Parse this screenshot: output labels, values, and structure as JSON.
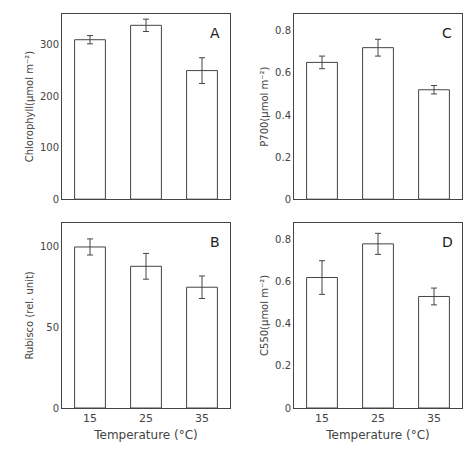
{
  "chart_data": [
    {
      "type": "bar",
      "categories": [
        "15",
        "25",
        "35"
      ],
      "values": [
        310,
        338,
        250
      ],
      "errors": [
        8,
        12,
        25
      ],
      "ylabel": "Chlorophyll(μmol m⁻²)",
      "ylim": [
        0,
        360
      ],
      "yticks": [
        0,
        100,
        200,
        300
      ],
      "annotation": "A",
      "color": "white",
      "grid": false,
      "tick_labels": "y"
    },
    {
      "type": "bar",
      "categories": [
        "15",
        "25",
        "35"
      ],
      "values": [
        100,
        88,
        75
      ],
      "errors": [
        5,
        8,
        7
      ],
      "xlabel": "Temperature (°C)",
      "ylabel": "Rubisco (rel. unit)",
      "ylim": [
        0,
        115
      ],
      "yticks": [
        0,
        50,
        100
      ],
      "annotation": "B",
      "color": "white",
      "grid": false
    },
    {
      "type": "bar",
      "categories": [
        "15",
        "25",
        "35"
      ],
      "values": [
        0.65,
        0.72,
        0.52
      ],
      "errors": [
        0.03,
        0.04,
        0.02
      ],
      "ylabel": "P700(μmol m⁻²)",
      "ylim": [
        0.0,
        0.88
      ],
      "yticks": [
        0.0,
        {
          "value": 0.2,
          "label": "0.2"
        },
        {
          "value": 0.4,
          "label": "0.4"
        },
        {
          "value": 0.6,
          "label": "0.6"
        },
        {
          "value": 0.8,
          "label": "0.8"
        }
      ],
      "annotation": "C",
      "color": "white",
      "grid": false,
      "tick_labels": "y"
    },
    {
      "type": "bar",
      "categories": [
        "15",
        "25",
        "35"
      ],
      "values": [
        0.62,
        0.78,
        0.53
      ],
      "errors": [
        0.08,
        0.05,
        0.04
      ],
      "xlabel": "Temperature (°C)",
      "ylabel": "C550(μmol m⁻²)",
      "ylim": [
        0.0,
        0.88
      ],
      "yticks": [
        0.0,
        {
          "value": 0.2,
          "label": "0.2"
        },
        {
          "value": 0.4,
          "label": "0.4"
        },
        {
          "value": 0.6,
          "label": "0.6"
        },
        {
          "value": 0.8,
          "label": "0.8"
        }
      ],
      "annotation": "D",
      "color": "white",
      "grid": false
    }
  ]
}
